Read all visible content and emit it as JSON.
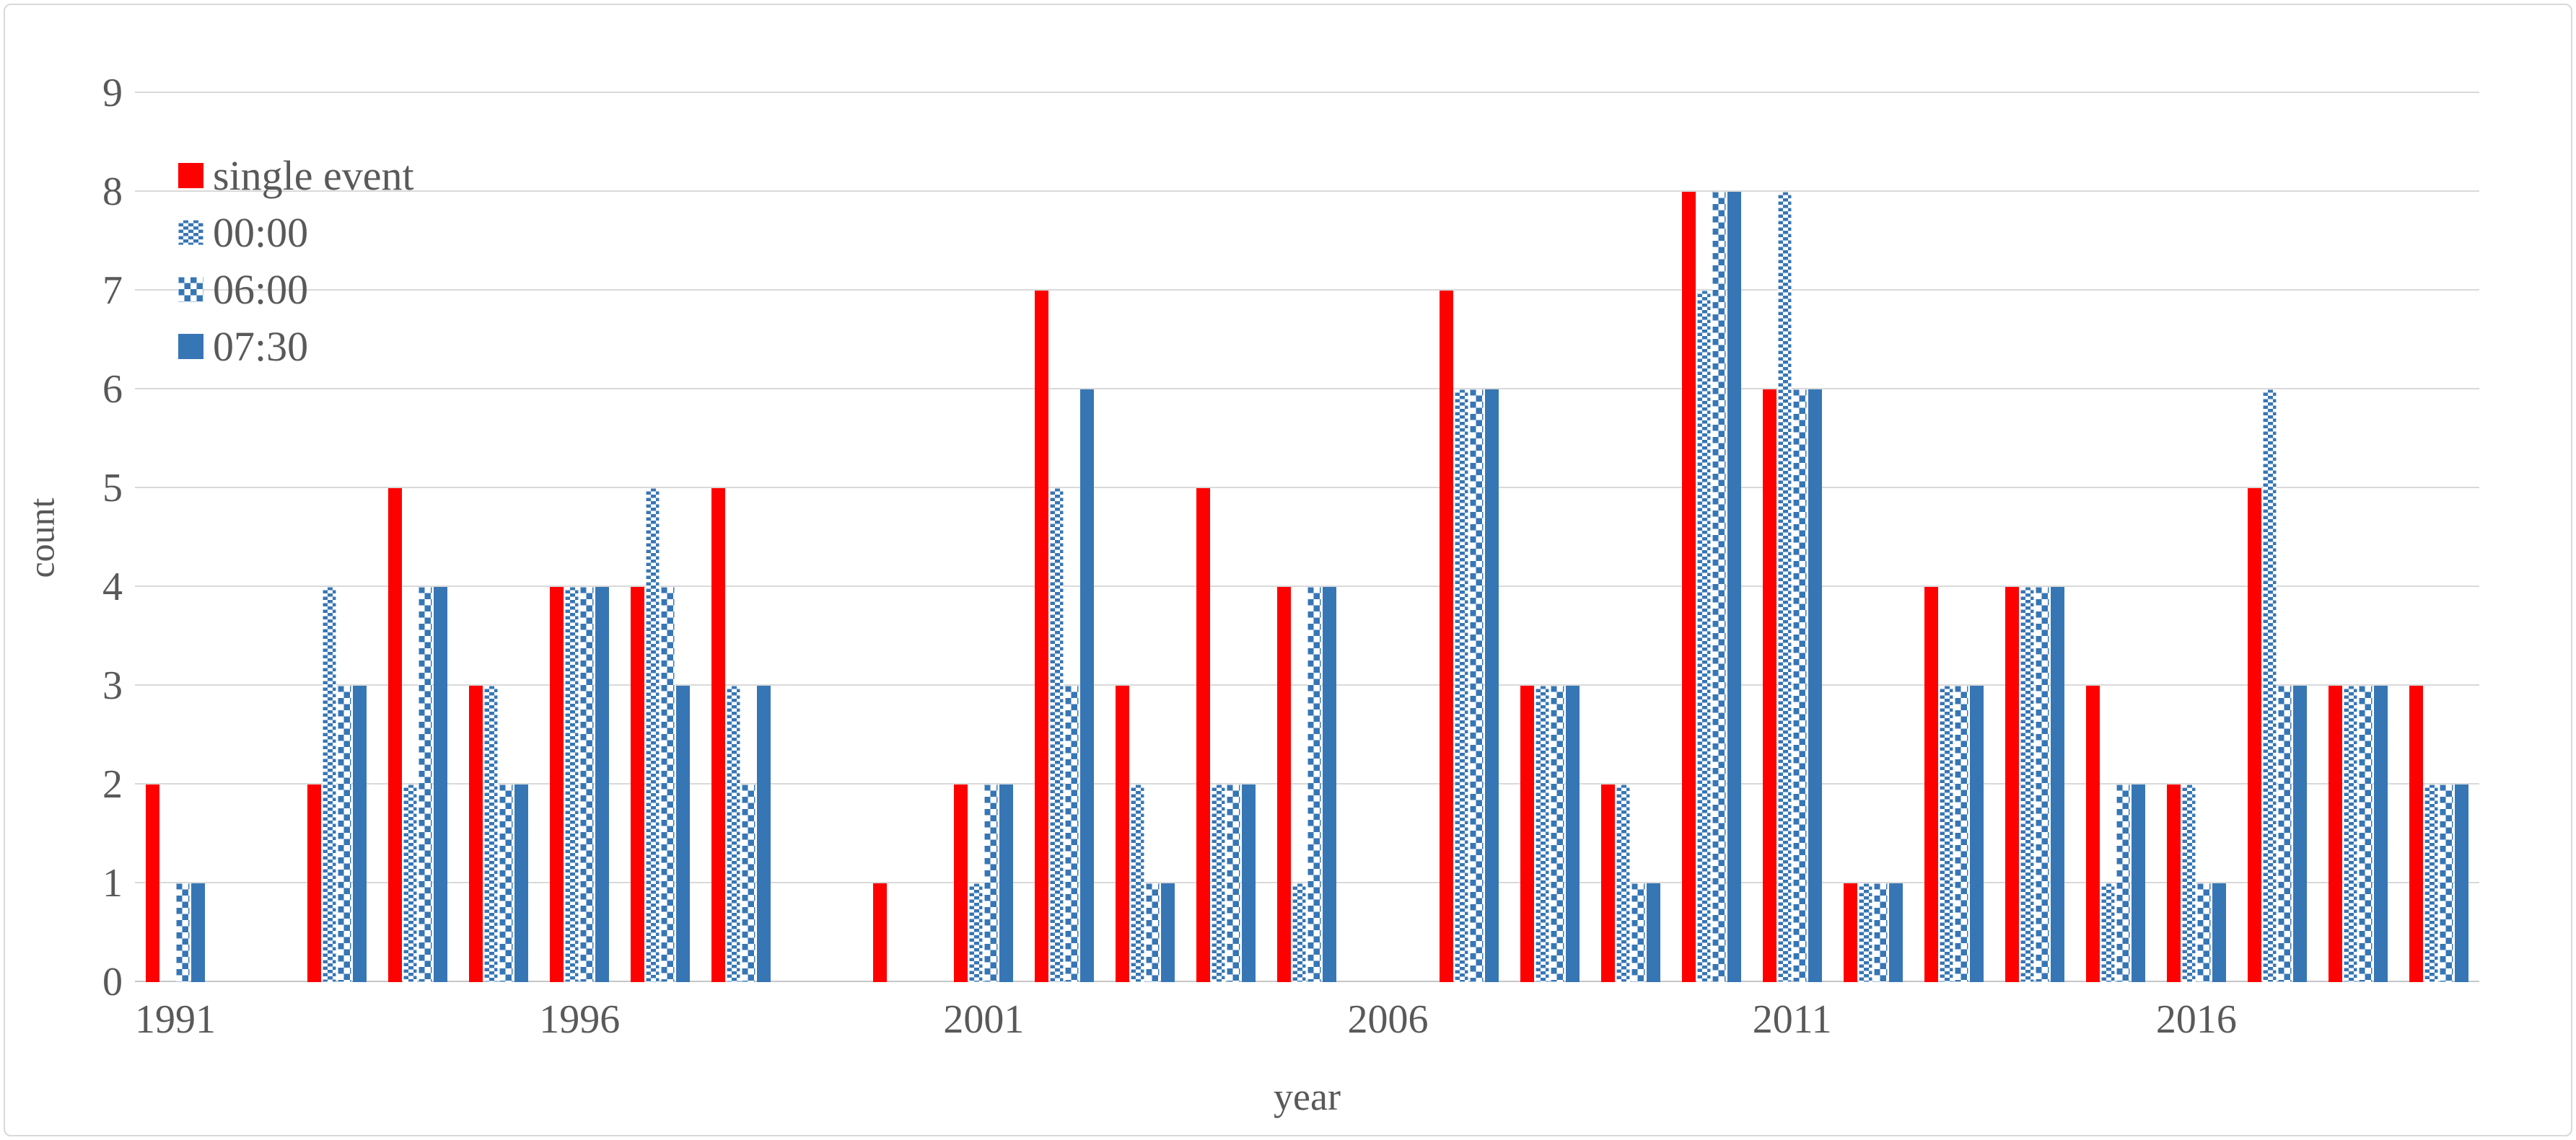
{
  "chart_data": {
    "type": "bar",
    "title": "",
    "xlabel": "year",
    "ylabel": "count",
    "ylim": [
      0,
      9
    ],
    "grid": true,
    "legend_position": "top-left-inside",
    "x_tick_labels": [
      "1991",
      "1996",
      "2001",
      "2006",
      "2011",
      "2016"
    ],
    "categories": [
      1991,
      1992,
      1993,
      1994,
      1995,
      1996,
      1997,
      1998,
      1999,
      2000,
      2001,
      2002,
      2003,
      2004,
      2005,
      2006,
      2007,
      2008,
      2009,
      2010,
      2011,
      2012,
      2013,
      2014,
      2015,
      2016,
      2017,
      2018,
      2019
    ],
    "series": [
      {
        "name": "single event",
        "color": "#FF0000",
        "pattern": "solid-red",
        "values": [
          2,
          0,
          2,
          5,
          3,
          4,
          4,
          5,
          0,
          1,
          2,
          7,
          3,
          5,
          4,
          0,
          7,
          3,
          2,
          8,
          6,
          1,
          4,
          4,
          3,
          2,
          5,
          3,
          3
        ]
      },
      {
        "name": "00:00",
        "color": "#3776B4",
        "pattern": "checker-flat",
        "values": [
          0,
          0,
          4,
          2,
          3,
          4,
          5,
          3,
          0,
          0,
          1,
          5,
          2,
          2,
          1,
          0,
          6,
          3,
          2,
          7,
          8,
          1,
          3,
          4,
          1,
          2,
          6,
          3,
          2
        ]
      },
      {
        "name": "06:00",
        "color": "#3776B4",
        "pattern": "checker-square",
        "values": [
          1,
          0,
          3,
          4,
          2,
          4,
          4,
          2,
          0,
          0,
          2,
          3,
          1,
          2,
          4,
          0,
          6,
          3,
          1,
          8,
          6,
          1,
          3,
          4,
          2,
          1,
          3,
          3,
          2
        ]
      },
      {
        "name": "07:30",
        "color": "#3776B4",
        "pattern": "solid-blue",
        "values": [
          1,
          0,
          3,
          4,
          2,
          4,
          3,
          3,
          0,
          0,
          2,
          6,
          1,
          2,
          4,
          0,
          6,
          3,
          1,
          8,
          6,
          1,
          3,
          4,
          2,
          1,
          3,
          3,
          2
        ]
      }
    ],
    "colors": {
      "accent_red": "#FF0000",
      "accent_blue": "#3776B4",
      "gridline": "#D9D9D9",
      "axis_line": "#C6C6C6",
      "text": "#595959",
      "frame_border": "#D9D9D9"
    }
  }
}
